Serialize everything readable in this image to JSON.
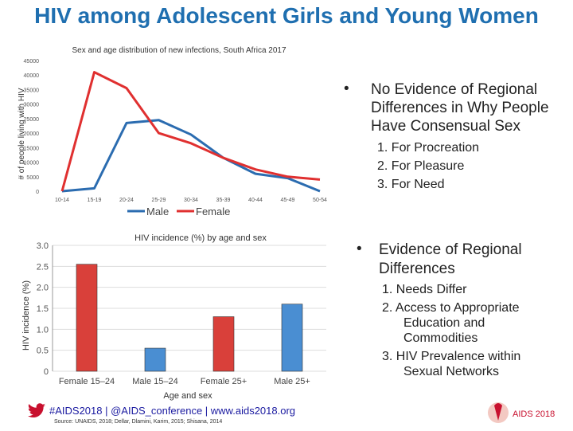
{
  "slide": {
    "title": "HIV among Adolescent Girls and Young Women"
  },
  "right_panel": {
    "bullet1": {
      "line1": "No Evidence of Regional",
      "line2": "Differences in Why People",
      "line3": "Have Consensual Sex"
    },
    "list1": [
      "1.  For Procreation",
      "2.  For Pleasure",
      "3.  For Need"
    ],
    "bullet2": {
      "line1": "Evidence of Regional",
      "line2": "Differences"
    },
    "list2": {
      "item1": "1.  Needs Differ",
      "item2_l1": "2.  Access to Appropriate",
      "item2_l2": "Education and",
      "item2_l3": "Commodities",
      "item3_l1": "3.  HIV Prevalence within",
      "item3_l2": "Sexual Networks"
    }
  },
  "footer": {
    "hashtags": "#AIDS2018 | @AIDS_conference | www.aids2018.org",
    "source": "Source: UNAIDS, 2018; Dellar, Dlamini, Karim, 2015; Shisana, 2014",
    "logo_text": "AIDS 2018"
  },
  "colors": {
    "male": "#2b6cb0",
    "female": "#e03030",
    "title": "#1f6fb0",
    "bar_female": "#d9403a",
    "bar_male": "#4a8ed2"
  },
  "chart_data": [
    {
      "type": "line",
      "title": "Sex and age distribution of new infections, South Africa 2017",
      "xlabel": "",
      "ylabel": "# of people living with HIV",
      "categories": [
        "10-14",
        "15-19",
        "20-24",
        "25-29",
        "30-34",
        "35-39",
        "40-44",
        "45-49",
        "50-54"
      ],
      "series": [
        {
          "name": "Male",
          "values": [
            0,
            1000,
            23500,
            24500,
            19500,
            11500,
            6000,
            4500,
            0
          ]
        },
        {
          "name": "Female",
          "values": [
            0,
            41000,
            35500,
            20000,
            16500,
            11500,
            7500,
            5000,
            4000
          ]
        }
      ],
      "ylim": [
        0,
        45000
      ],
      "yticks": [
        "0",
        "5000",
        "10000",
        "15000",
        "20000",
        "25000",
        "30000",
        "35000",
        "40000",
        "45000"
      ],
      "legend": "bottom",
      "grid": false
    },
    {
      "type": "bar",
      "title": "HIV incidence (%) by age and sex",
      "xlabel": "Age and sex",
      "ylabel": "HIV incidence (%)",
      "categories": [
        "Female 15–24",
        "Male 15–24",
        "Female 25+",
        "Male 25+"
      ],
      "values": [
        2.55,
        0.55,
        1.3,
        1.6
      ],
      "ylim": [
        0,
        3.0
      ],
      "yticks": [
        "0",
        "0.5",
        "1.0",
        "1.5",
        "2.0",
        "2.5",
        "3.0"
      ],
      "grid": true
    }
  ]
}
